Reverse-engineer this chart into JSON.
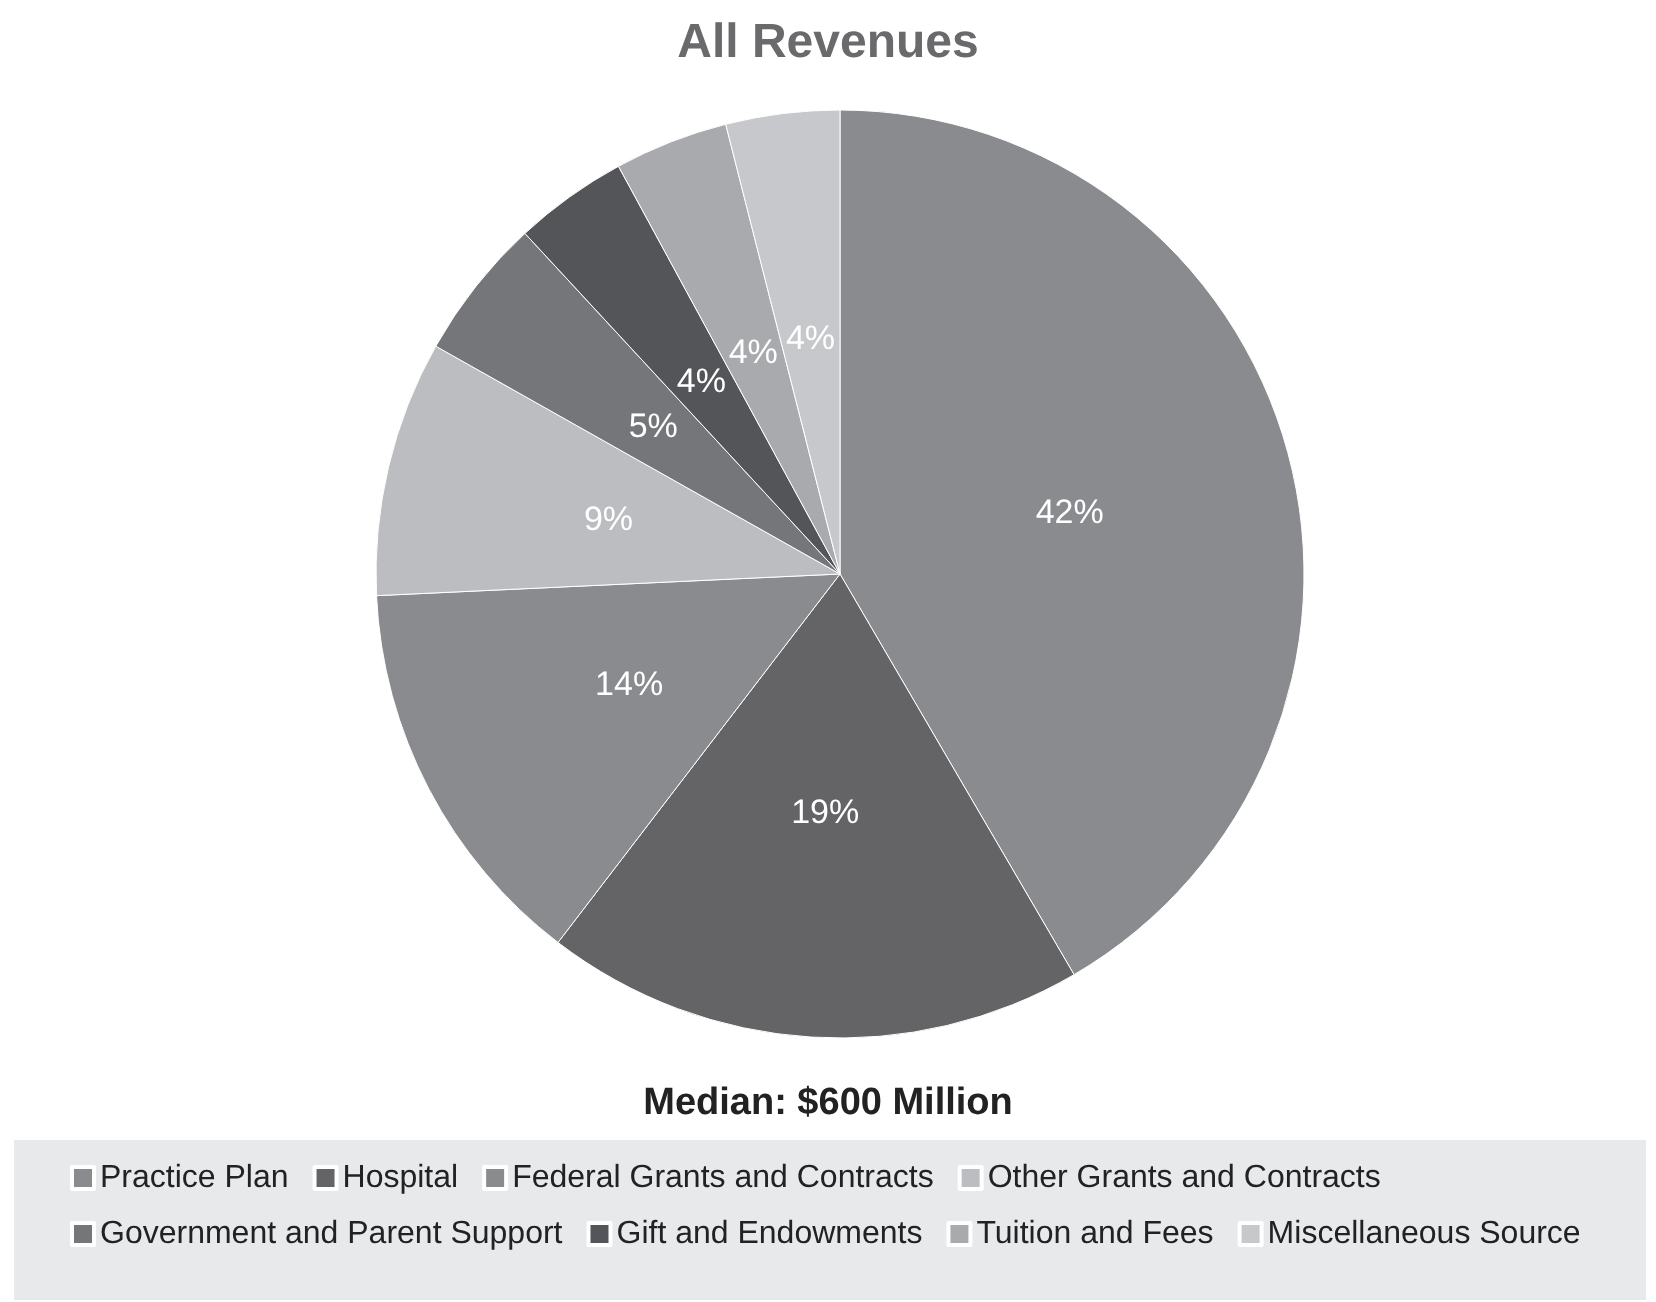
{
  "chart_data": {
    "type": "pie",
    "title": "All Revenues",
    "categories": [
      "Practice Plan",
      "Hospital",
      "Federal Grants and Contracts",
      "Other Grants and Contracts",
      "Government and Parent Support",
      "Gift and Endowments",
      "Tuition and Fees",
      "Miscellaneous Source"
    ],
    "values": [
      42,
      19,
      14,
      9,
      5,
      4,
      4,
      4
    ],
    "value_labels": [
      "42%",
      "19%",
      "14%",
      "9%",
      "5%",
      "4%",
      "4%",
      "4%"
    ],
    "colors": [
      "#8a8b8f",
      "#646467",
      "#8a8b8f",
      "#bcbdc0",
      "#75767a",
      "#545558",
      "#a9aaad",
      "#c7c8cb"
    ],
    "annotations": [
      "Median: $600 Million"
    ],
    "legend": "bottom"
  }
}
